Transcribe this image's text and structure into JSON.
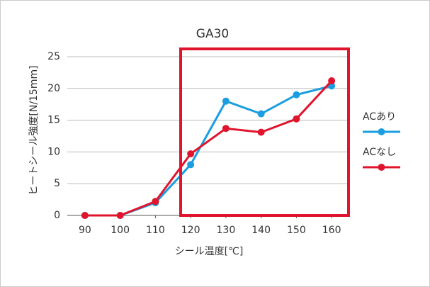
{
  "chart_data": {
    "type": "line",
    "title": "GA30",
    "x_label": "シール温度[℃]",
    "y_label": "ヒートシール強度[N/15mm]",
    "x": [
      90,
      100,
      110,
      120,
      130,
      140,
      150,
      160
    ],
    "series": [
      {
        "name": "ACあり",
        "color": "#1a9ee0",
        "values": [
          0,
          0,
          2,
          8,
          18,
          16,
          19,
          20.4
        ]
      },
      {
        "name": "ACなし",
        "color": "#e0142d",
        "values": [
          0,
          0,
          2.2,
          9.7,
          13.7,
          13.1,
          15.2,
          21.2
        ]
      }
    ],
    "xlim": [
      85,
      165
    ],
    "xticks": [
      90,
      100,
      110,
      120,
      130,
      140,
      150,
      160
    ],
    "ylim": [
      0,
      25
    ],
    "yticks": [
      0,
      5,
      10,
      15,
      20,
      25
    ],
    "grid": true
  }
}
